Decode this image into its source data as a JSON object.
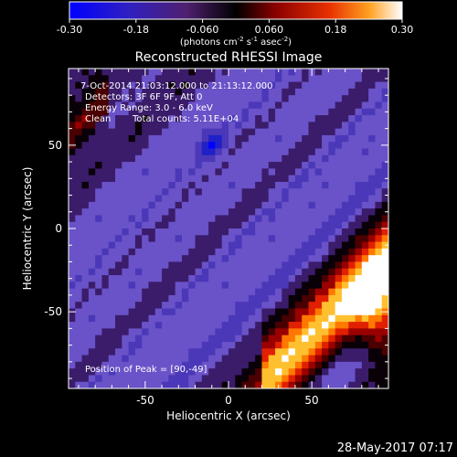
{
  "chart_data": {
    "type": "heatmap",
    "title": "Reconstructed RHESSI Image",
    "colorbar": {
      "ticks": [
        "-0.30",
        "-0.18",
        "-0.060",
        "0.060",
        "0.18",
        "0.30"
      ],
      "tick_values": [
        -0.3,
        -0.18,
        -0.06,
        0.06,
        0.18,
        0.3
      ],
      "range": [
        -0.3,
        0.3
      ],
      "unit_main": "(photons cm",
      "unit_exp1": "-2",
      "unit_mid": " s",
      "unit_exp2": "-1",
      "unit_mid2": " asec",
      "unit_exp3": "-2",
      "unit_end": ")"
    },
    "annotations": {
      "time": "7-Oct-2014 21:03:12.000 to 21:13:12.000",
      "detectors": "Detectors: 3F 6F 9F, Att 0",
      "energy": "Energy Range: 3.0 - 6.0 keV",
      "clean": "Clean",
      "counts": "Total counts: 5.11E+04",
      "peak": "Position of Peak = [90,-49]"
    },
    "xlabel": "Heliocentric X (arcsec)",
    "ylabel": "Heliocentric Y (arcsec)",
    "xlim": [
      -96,
      96
    ],
    "ylim": [
      -96,
      96
    ],
    "x_ticks": [
      -50,
      0,
      50
    ],
    "y_ticks": [
      50,
      0,
      -50
    ],
    "peak": [
      90,
      -49
    ],
    "colors": [
      "#0000ff",
      "#2020c8",
      "#4a38b8",
      "#6a52c8",
      "#3a1c6a",
      "#0a0008",
      "#4a0000",
      "#9a0000",
      "#e02000",
      "#ff7800",
      "#ffc030",
      "#ffffff"
    ]
  },
  "footer": {
    "timestamp": "28-May-2017 07:17"
  }
}
